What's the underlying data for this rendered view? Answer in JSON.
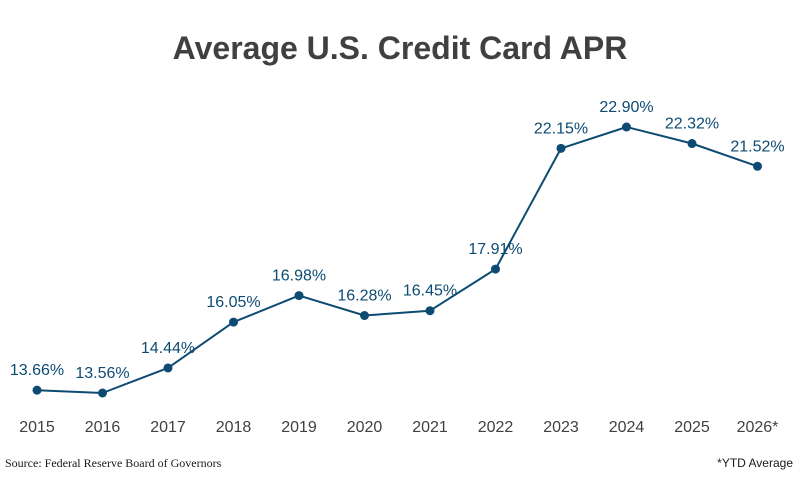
{
  "chart_data": {
    "type": "line",
    "title": "Average U.S. Credit Card APR",
    "categories": [
      "2015",
      "2016",
      "2017",
      "2018",
      "2019",
      "2020",
      "2021",
      "2022",
      "2023",
      "2024",
      "2025",
      "2026*"
    ],
    "series": [
      {
        "values": [
          13.66,
          13.56,
          14.44,
          16.05,
          16.98,
          16.28,
          16.45,
          17.91,
          22.15,
          22.9,
          22.32,
          21.52
        ]
      }
    ],
    "data_labels": [
      "13.66%",
      "13.56%",
      "14.44%",
      "16.05%",
      "16.98%",
      "16.28%",
      "16.45%",
      "17.91%",
      "22.15%",
      "22.90%",
      "22.32%",
      "21.52%"
    ],
    "ylim": [
      13,
      24
    ],
    "grid": false,
    "xlabel": "",
    "ylabel": "",
    "line_color": "#0d4b73",
    "label_color": "#0d4b73",
    "tick_color": "#404040"
  },
  "source": "Source: Federal Reserve Board of Governors",
  "footnote": "*YTD Average"
}
